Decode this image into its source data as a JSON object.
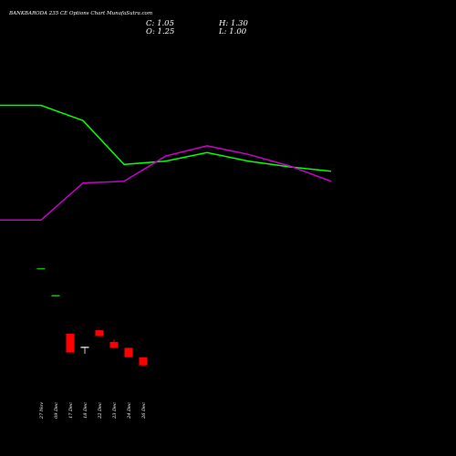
{
  "chart_data": {
    "type": "candlestick",
    "title": "BANKBARODA 235 CE Options Chart MunafaSutra.com",
    "ohlc_summary": {
      "c_label": "C: 1.05",
      "h_label": "H: 1.30",
      "o_label": "O: 1.25",
      "l_label": "L: 1.00"
    },
    "categories": [
      "27 Nov",
      "09 Dec",
      "17 Dec",
      "18 Dec",
      "22 Dec",
      "23 Dec",
      "24 Dec",
      "26 Dec"
    ],
    "price_range": [
      0.8,
      7.6
    ],
    "candles": [
      {
        "date": "27 Nov",
        "open": 5.7,
        "high": 5.7,
        "low": 5.7,
        "close": 5.7,
        "color": "#22aa22"
      },
      {
        "date": "09 Dec",
        "open": 4.55,
        "high": 4.55,
        "low": 4.55,
        "close": 4.55,
        "color": "#22aa22"
      },
      {
        "date": "17 Dec",
        "open": 2.9,
        "high": 2.9,
        "low": 2.1,
        "close": 2.1,
        "color": "#ff0000"
      },
      {
        "date": "18 Dec",
        "open": 2.35,
        "high": 2.35,
        "low": 2.05,
        "close": 2.35,
        "color": "#cccccc"
      },
      {
        "date": "22 Dec",
        "open": 3.05,
        "high": 3.05,
        "low": 2.8,
        "close": 2.8,
        "color": "#ff0000"
      },
      {
        "date": "23 Dec",
        "open": 2.55,
        "high": 2.65,
        "low": 2.3,
        "close": 2.3,
        "color": "#ff0000"
      },
      {
        "date": "24 Dec",
        "open": 2.3,
        "high": 2.3,
        "low": 1.9,
        "close": 1.9,
        "color": "#ff0000"
      },
      {
        "date": "26 Dec",
        "open": 1.9,
        "high": 1.9,
        "low": 1.55,
        "close": 1.55,
        "color": "#ff0000"
      }
    ],
    "line_series": [
      {
        "color": "#00ff00",
        "points": [
          [
            0,
            0.7
          ],
          [
            45,
            0.7
          ],
          [
            91,
            0.61
          ],
          [
            136,
            0.35
          ],
          [
            182,
            0.37
          ],
          [
            227,
            0.42
          ],
          [
            272,
            0.37
          ],
          [
            318,
            0.335
          ],
          [
            363,
            0.31
          ]
        ]
      },
      {
        "color": "#cc00cc",
        "points": [
          [
            0,
            0.02
          ],
          [
            45,
            0.02
          ],
          [
            91,
            0.24
          ],
          [
            136,
            0.25
          ],
          [
            182,
            0.4
          ],
          [
            227,
            0.46
          ],
          [
            272,
            0.41
          ],
          [
            318,
            0.34
          ],
          [
            363,
            0.25
          ]
        ]
      }
    ],
    "line_range": [
      0,
      1
    ],
    "grid": false,
    "legend": "none",
    "background": "#000000"
  }
}
